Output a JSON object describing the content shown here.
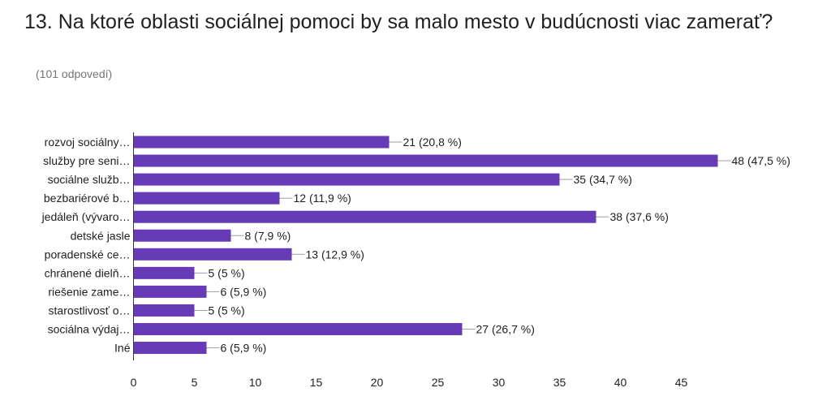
{
  "header": {
    "title": "13. Na ktoré oblasti sociálnej pomoci by sa malo mesto v budúcnosti viac zamerať?",
    "subtitle": "(101 odpovedí)"
  },
  "colors": {
    "bar": "#673ab7",
    "text": "#212121",
    "muted": "#757575",
    "axis": "#333333",
    "leader": "#9e9e9e"
  },
  "chart_data": {
    "type": "bar",
    "orientation": "horizontal",
    "categories": [
      "rozvoj sociálny…",
      "služby pre seni…",
      "sociálne služb…",
      "bezbariérové b…",
      "jedáleň (vývaro…",
      "detské jasle",
      "poradenské ce…",
      "chránené dielň…",
      "riešenie zame…",
      "starostlivosť o…",
      "sociálna výdaj…",
      "Iné"
    ],
    "values": [
      21,
      48,
      35,
      12,
      38,
      8,
      13,
      5,
      6,
      5,
      27,
      6
    ],
    "data_labels": [
      "21 (20,8 %)",
      "48 (47,5 %)",
      "35 (34,7 %)",
      "12 (11,9 %)",
      "38 (37,6 %)",
      "8 (7,9 %)",
      "13 (12,9 %)",
      "5 (5 %)",
      "6 (5,9 %)",
      "5 (5 %)",
      "27 (26,7 %)",
      "6 (5,9 %)"
    ],
    "x_ticks": [
      "0",
      "5",
      "10",
      "15",
      "20",
      "25",
      "30",
      "35",
      "40",
      "45"
    ],
    "xlim": [
      0,
      48
    ],
    "grid": false,
    "legend": "none"
  }
}
